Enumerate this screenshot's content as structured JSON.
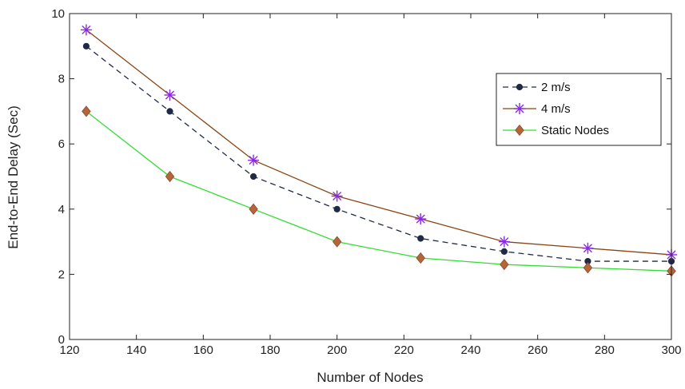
{
  "chart_data": {
    "type": "line",
    "xlabel": "Number of Nodes",
    "ylabel": "End-to-End Delay (Sec)",
    "xlim": [
      120,
      300
    ],
    "ylim": [
      0,
      10
    ],
    "xticks": [
      "120",
      "140",
      "160",
      "180",
      "200",
      "220",
      "240",
      "260",
      "280",
      "300"
    ],
    "yticks": [
      "0",
      "2",
      "4",
      "6",
      "8",
      "10"
    ],
    "x": [
      125,
      150,
      175,
      200,
      225,
      250,
      275,
      300
    ],
    "grid": false,
    "legend_position": "top-right",
    "series": [
      {
        "name": "2 m/s",
        "values": [
          9.0,
          7.0,
          5.0,
          4.0,
          3.1,
          2.7,
          2.4,
          2.4
        ],
        "color": "#1f2a44",
        "line_style": "dashed",
        "marker": "dot"
      },
      {
        "name": "4 m/s",
        "values": [
          9.5,
          7.5,
          5.5,
          4.4,
          3.7,
          3.0,
          2.8,
          2.6
        ],
        "color": "#8b4513",
        "marker_color": "#8a2be2",
        "line_style": "solid",
        "marker": "asterisk"
      },
      {
        "name": "Static Nodes",
        "values": [
          7.0,
          5.0,
          4.0,
          3.0,
          2.5,
          2.3,
          2.2,
          2.1
        ],
        "color": "#33dd33",
        "marker_color": "#b5653a",
        "line_style": "solid",
        "marker": "diamond"
      }
    ]
  }
}
